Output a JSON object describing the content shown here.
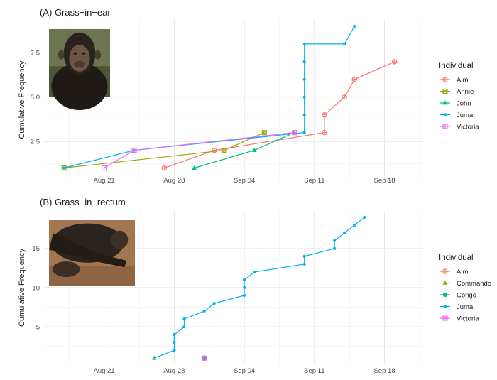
{
  "chart_data": [
    {
      "type": "line",
      "title": "(A) Grass−in−ear",
      "xlabel": "",
      "ylabel": "Cumulative Frequency",
      "x_type": "date",
      "year": 2018,
      "xlim": [
        "2018-08-15",
        "2018-09-22"
      ],
      "ylim": [
        0.3,
        9.4
      ],
      "x_ticks": [
        "2018-08-21",
        "2018-08-28",
        "2018-09-04",
        "2018-09-11",
        "2018-09-18"
      ],
      "x_tick_labels": [
        "Aug 21",
        "Aug 28",
        "Sep 04",
        "Sep 11",
        "Sep 18"
      ],
      "y_ticks": [
        2.5,
        5.0,
        7.5
      ],
      "y_tick_labels": [
        "2.5",
        "5.0",
        "7.5"
      ],
      "grid": true,
      "legend_title": "Individual",
      "legend_position": "right",
      "photo": "chimpanzee-portrait",
      "series": [
        {
          "name": "Aimi",
          "color": "#F8766D",
          "marker": "circle-plus",
          "x": [
            "2018-08-27",
            "2018-09-01",
            "2018-09-12",
            "2018-09-12",
            "2018-09-14",
            "2018-09-15",
            "2018-09-19"
          ],
          "y": [
            1,
            2,
            3,
            4,
            5,
            6,
            7
          ]
        },
        {
          "name": "Annie",
          "color": "#A3A500",
          "marker": "square-x",
          "x": [
            "2018-08-17",
            "2018-09-02",
            "2018-09-06"
          ],
          "y": [
            1,
            2,
            3
          ]
        },
        {
          "name": "John",
          "color": "#00BF7D",
          "marker": "triangle",
          "x": [
            "2018-08-30",
            "2018-09-05",
            "2018-09-09"
          ],
          "y": [
            1,
            2,
            3
          ]
        },
        {
          "name": "Juma",
          "color": "#00B0F6",
          "marker": "dot",
          "x": [
            "2018-08-17",
            "2018-08-24",
            "2018-09-10",
            "2018-09-10",
            "2018-09-10",
            "2018-09-10",
            "2018-09-10",
            "2018-09-10",
            "2018-09-14",
            "2018-09-15"
          ],
          "y": [
            1,
            2,
            3,
            4,
            5,
            6,
            7,
            8,
            8,
            9
          ]
        },
        {
          "name": "Victoria",
          "color": "#E76BF3",
          "marker": "square-plus",
          "x": [
            "2018-08-21",
            "2018-08-24",
            "2018-09-09"
          ],
          "y": [
            1,
            2,
            3
          ]
        }
      ]
    },
    {
      "type": "line",
      "title": "(B) Grass−in−rectum",
      "xlabel": "",
      "ylabel": "Cumulative Frequency",
      "x_type": "date",
      "year": 2018,
      "xlim": [
        "2018-08-15",
        "2018-09-22"
      ],
      "ylim": [
        0.2,
        19.8
      ],
      "x_ticks": [
        "2018-08-21",
        "2018-08-28",
        "2018-09-04",
        "2018-09-11",
        "2018-09-18"
      ],
      "x_tick_labels": [
        "Aug 21",
        "Aug 28",
        "Sep 04",
        "Sep 11",
        "Sep 18"
      ],
      "y_ticks": [
        5,
        10,
        15
      ],
      "y_tick_labels": [
        "5",
        "10",
        "15"
      ],
      "grid": true,
      "legend_title": "Individual",
      "legend_position": "right",
      "photo": "chimpanzee-sitting",
      "series": [
        {
          "name": "Aimi",
          "color": "#F8766D",
          "marker": "circle-plus",
          "x": [
            "2018-08-31"
          ],
          "y": [
            1
          ]
        },
        {
          "name": "Commando",
          "color": "#A3A500",
          "marker": "triangle",
          "x": [
            "2018-08-26"
          ],
          "y": [
            1
          ]
        },
        {
          "name": "Congo",
          "color": "#00BF7D",
          "marker": "circle",
          "x": [
            "2018-08-31"
          ],
          "y": [
            1
          ]
        },
        {
          "name": "Juma",
          "color": "#00B0F6",
          "marker": "dot",
          "x": [
            "2018-08-26",
            "2018-08-28",
            "2018-08-28",
            "2018-08-28",
            "2018-08-29",
            "2018-08-29",
            "2018-08-31",
            "2018-09-01",
            "2018-09-04",
            "2018-09-04",
            "2018-09-04",
            "2018-09-05",
            "2018-09-10",
            "2018-09-10",
            "2018-09-13",
            "2018-09-13",
            "2018-09-14",
            "2018-09-15",
            "2018-09-16"
          ],
          "y": [
            1,
            2,
            3,
            4,
            5,
            6,
            7,
            8,
            9,
            10,
            11,
            12,
            13,
            14,
            15,
            16,
            17,
            18,
            19
          ]
        },
        {
          "name": "Victoria",
          "color": "#E76BF3",
          "marker": "square-x",
          "x": [
            "2018-08-31"
          ],
          "y": [
            1
          ]
        }
      ]
    }
  ]
}
